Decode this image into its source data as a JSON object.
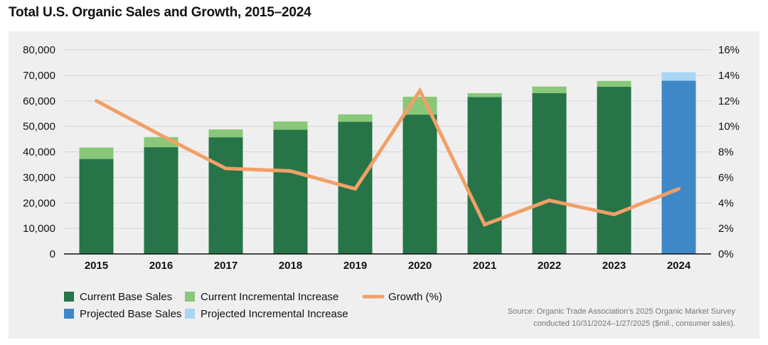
{
  "title": "Total U.S. Organic Sales and Growth, 2015–2024",
  "chart_data": {
    "type": "bar",
    "title": "Total U.S. Organic Sales and Growth, 2015–2024",
    "categories": [
      "2015",
      "2016",
      "2017",
      "2018",
      "2019",
      "2020",
      "2021",
      "2022",
      "2023",
      "2024"
    ],
    "series": [
      {
        "name": "Current Base Sales",
        "kind": "bar-stack-base",
        "color": "#277448",
        "values": [
          37200,
          41800,
          45700,
          48700,
          51800,
          54600,
          61500,
          63000,
          65500,
          null
        ]
      },
      {
        "name": "Current Incremental Increase",
        "kind": "bar-stack-top",
        "color": "#88c878",
        "values": [
          4500,
          4000,
          3100,
          3200,
          2900,
          7000,
          1500,
          2600,
          2300,
          null
        ]
      },
      {
        "name": "Projected Base Sales",
        "kind": "bar-stack-base",
        "color": "#3f88c8",
        "values": [
          null,
          null,
          null,
          null,
          null,
          null,
          null,
          null,
          null,
          67900
        ]
      },
      {
        "name": "Projected Incremental Increase",
        "kind": "bar-stack-top",
        "color": "#a9d6f3",
        "values": [
          null,
          null,
          null,
          null,
          null,
          null,
          null,
          null,
          null,
          3300
        ]
      },
      {
        "name": "Growth (%)",
        "kind": "line",
        "axis": "right",
        "color": "#f2a067",
        "values": [
          12.0,
          9.3,
          6.7,
          6.5,
          5.1,
          12.8,
          2.3,
          4.2,
          3.1,
          5.1
        ]
      }
    ],
    "y_left": {
      "min": 0,
      "max": 80000,
      "ticks": [
        "0",
        "10,000",
        "20,000",
        "30,000",
        "40,000",
        "50,000",
        "60,000",
        "70,000",
        "80,000"
      ]
    },
    "y_right": {
      "min": 0,
      "max": 16,
      "ticks": [
        "0%",
        "2%",
        "4%",
        "6%",
        "8%",
        "10%",
        "12%",
        "14%",
        "16%"
      ]
    },
    "grid": true,
    "legend_position": "bottom-left"
  },
  "legend": [
    {
      "label": "Current Base Sales",
      "color": "#277448",
      "swatch": "box"
    },
    {
      "label": "Current Incremental Increase",
      "color": "#88c878",
      "swatch": "box"
    },
    {
      "label": "Growth (%)",
      "color": "#f2a067",
      "swatch": "line"
    },
    {
      "label": "Projected Base Sales",
      "color": "#3f88c8",
      "swatch": "box"
    },
    {
      "label": "Projected Incremental Increase",
      "color": "#a9d6f3",
      "swatch": "box"
    }
  ],
  "source": {
    "line1": "Source: Organic Trade Association’s 2025 Organic Market Survey",
    "line2": "conducted 10/31/2024–1/27/2025 ($mil., consumer sales)."
  }
}
